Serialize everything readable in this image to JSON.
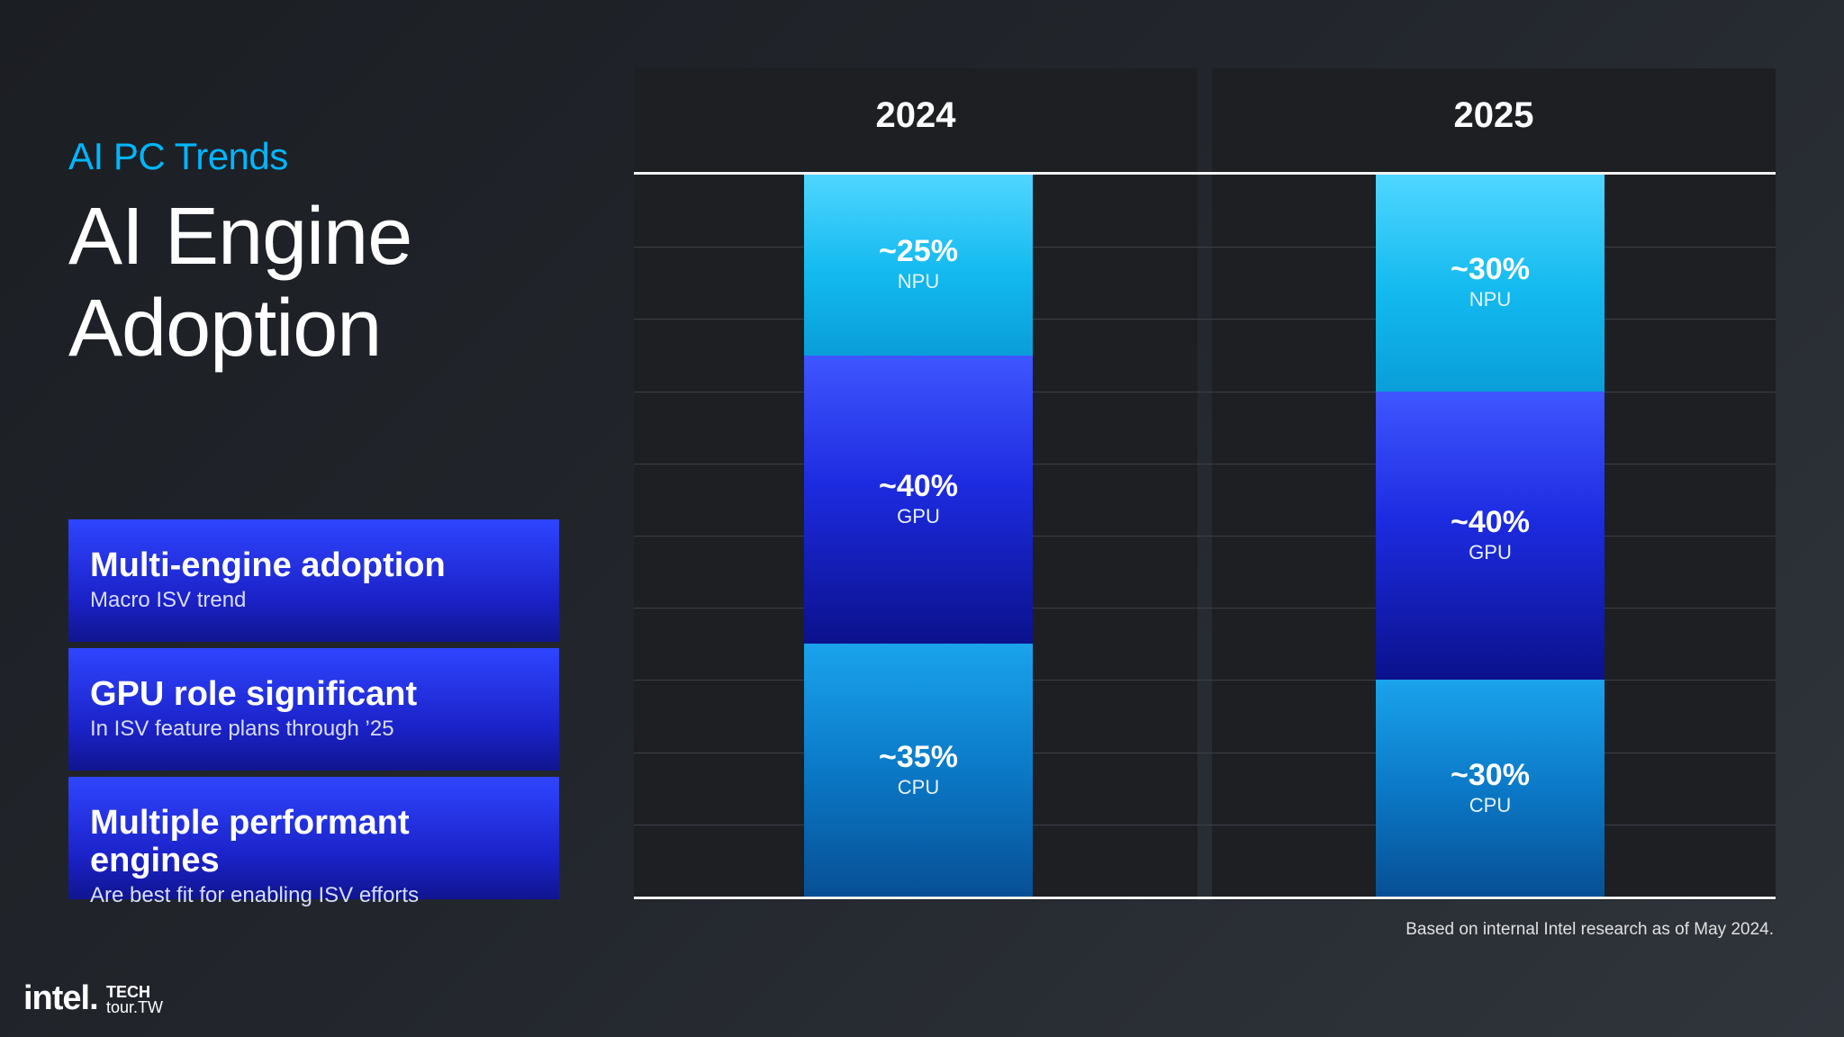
{
  "slide": {
    "kicker": "AI PC Trends",
    "title": "AI Engine Adoption",
    "footnote": "Based on internal Intel research as of May 2024.",
    "logo_text": "intel.",
    "cobrand_line1": "TECH",
    "cobrand_line2": "tour.TW"
  },
  "cards": [
    {
      "title": "Multi-engine adoption",
      "subtitle": "Macro ISV trend"
    },
    {
      "title": "GPU role significant",
      "subtitle": "In ISV feature plans through ’25"
    },
    {
      "title": "Multiple performant engines",
      "subtitle": "Are best fit for enabling ISV efforts"
    }
  ],
  "colors": {
    "accent": "#00b6ff",
    "npu": "#1ec3f5",
    "gpu": "#2030e6",
    "cpu": "#0c7fcd",
    "card": "#2438f0"
  },
  "chart_data": {
    "type": "bar",
    "stacked": true,
    "orientation": "vertical",
    "categories": [
      "2024",
      "2025"
    ],
    "series": [
      {
        "name": "NPU",
        "values": [
          25,
          30
        ],
        "labels": [
          "~25%",
          "~30%"
        ]
      },
      {
        "name": "GPU",
        "values": [
          40,
          40
        ],
        "labels": [
          "~40%",
          "~40%"
        ]
      },
      {
        "name": "CPU",
        "values": [
          35,
          30
        ],
        "labels": [
          "~35%",
          "~30%"
        ]
      }
    ],
    "ylim": [
      0,
      100
    ],
    "grid": true,
    "legend": "none",
    "xlabel": "",
    "ylabel": ""
  }
}
